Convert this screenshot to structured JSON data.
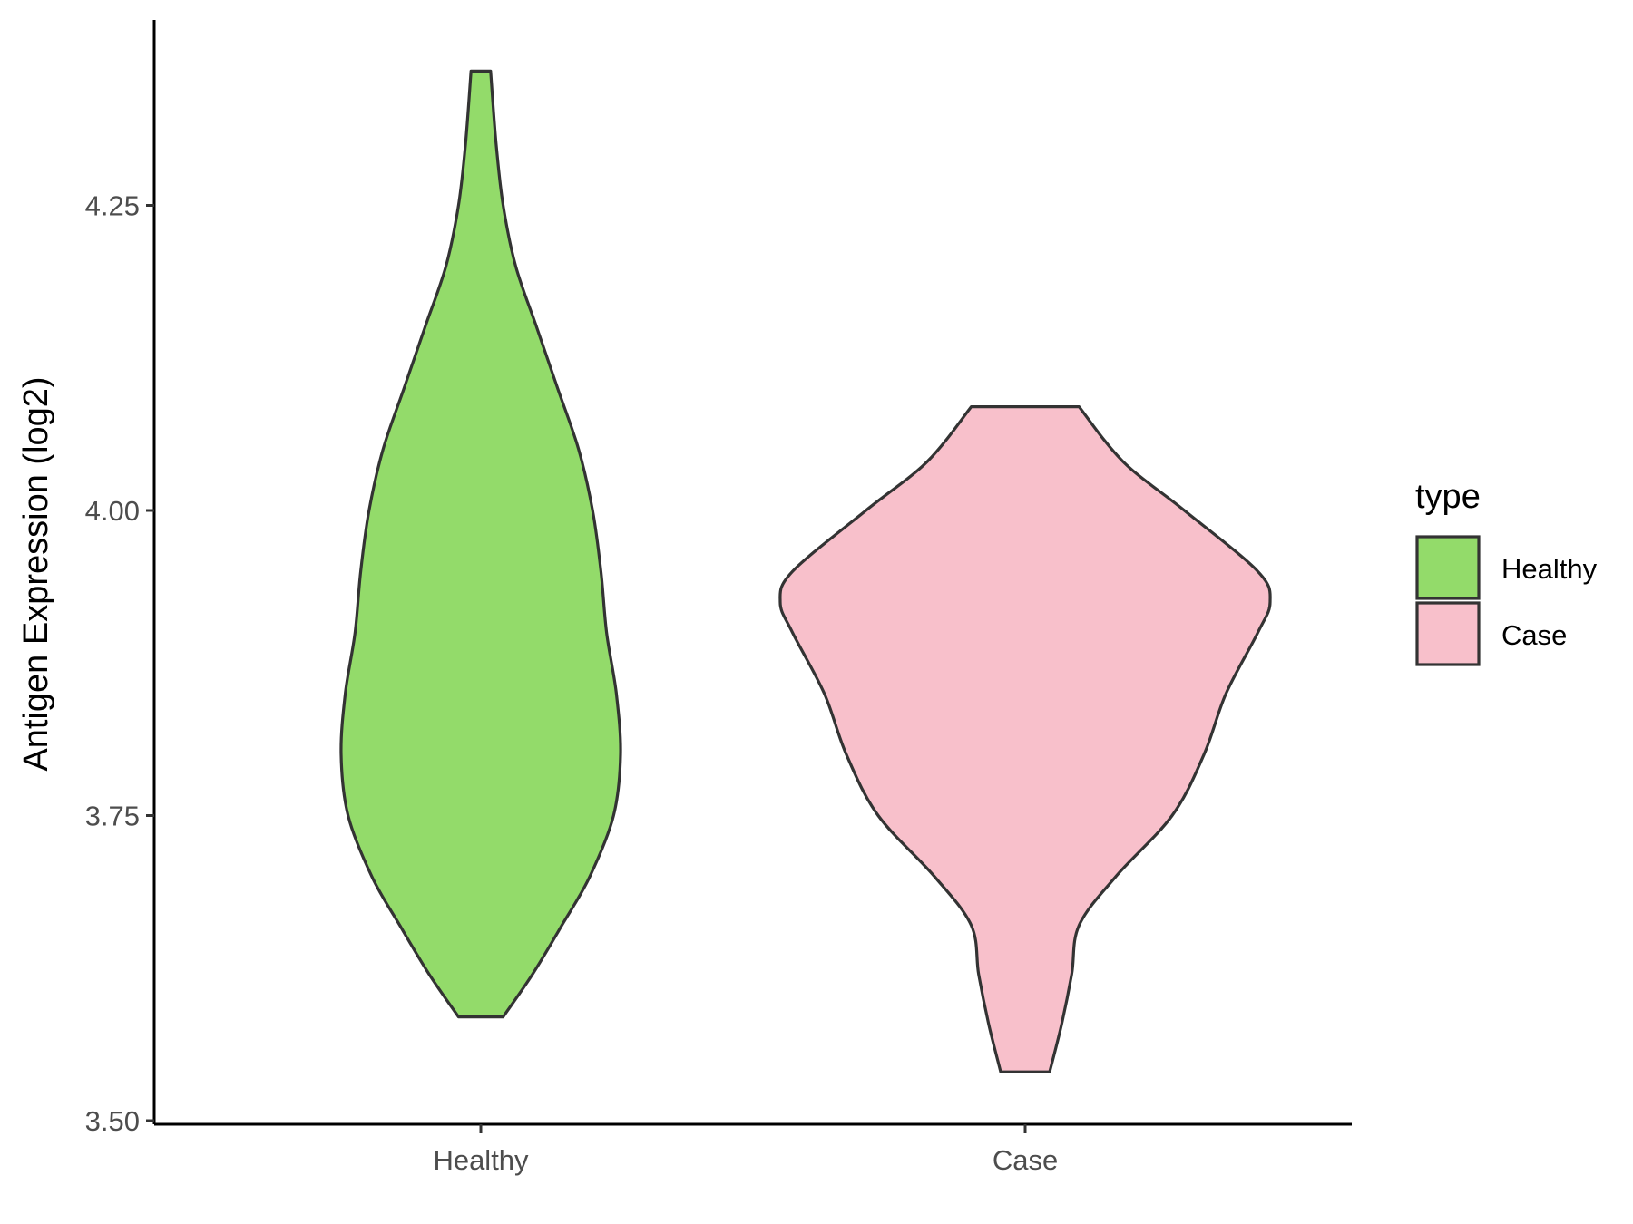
{
  "chart_data": {
    "type": "violin",
    "title": "",
    "xlabel": "",
    "ylabel": "Antigen Expression (log2)",
    "ylim": [
      3.5,
      4.4
    ],
    "yticks": [
      "3.50",
      "3.75",
      "4.00",
      "4.25"
    ],
    "categories": [
      "Healthy",
      "Case"
    ],
    "grid": false,
    "legend": {
      "title": "type",
      "placement": "right",
      "entries": [
        "Healthy",
        "Case"
      ]
    },
    "series": [
      {
        "name": "Healthy",
        "color": "#93DB6A",
        "min": 3.585,
        "max": 4.36,
        "density_profile": [
          [
            3.585,
            0.16
          ],
          [
            3.62,
            0.37
          ],
          [
            3.66,
            0.58
          ],
          [
            3.7,
            0.78
          ],
          [
            3.75,
            0.95
          ],
          [
            3.8,
            1.0
          ],
          [
            3.85,
            0.97
          ],
          [
            3.9,
            0.9
          ],
          [
            3.95,
            0.86
          ],
          [
            4.0,
            0.8
          ],
          [
            4.05,
            0.7
          ],
          [
            4.1,
            0.55
          ],
          [
            4.15,
            0.4
          ],
          [
            4.2,
            0.25
          ],
          [
            4.25,
            0.16
          ],
          [
            4.3,
            0.11
          ],
          [
            4.36,
            0.07
          ]
        ]
      },
      {
        "name": "Case",
        "color": "#F8C0CB",
        "min": 3.54,
        "max": 4.085,
        "density_profile": [
          [
            3.54,
            0.1
          ],
          [
            3.58,
            0.15
          ],
          [
            3.62,
            0.19
          ],
          [
            3.66,
            0.22
          ],
          [
            3.7,
            0.37
          ],
          [
            3.75,
            0.6
          ],
          [
            3.8,
            0.73
          ],
          [
            3.85,
            0.82
          ],
          [
            3.9,
            0.95
          ],
          [
            3.925,
            1.0
          ],
          [
            3.95,
            0.95
          ],
          [
            4.0,
            0.65
          ],
          [
            4.04,
            0.4
          ],
          [
            4.085,
            0.22
          ]
        ]
      }
    ]
  }
}
